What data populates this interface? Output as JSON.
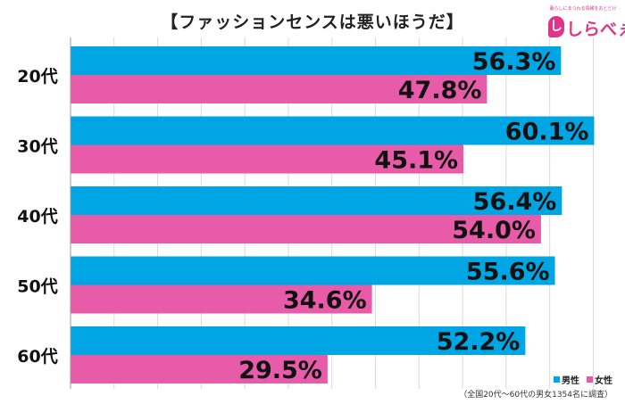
{
  "title": "【ファッションセンスは悪いほうだ】",
  "logo": {
    "tagline": "暮らしにまつわる情報をおとどけ",
    "mark": "し",
    "name": "しらべぇ"
  },
  "legend": [
    {
      "name": "男性",
      "color": "#00a6e4"
    },
    {
      "name": "女性",
      "color": "#e85ba8"
    }
  ],
  "note": "（全国20代～60代の男女1354名に調査）",
  "chart_data": {
    "type": "bar",
    "orientation": "horizontal",
    "title": "【ファッションセンスは悪いほうだ】",
    "categories": [
      "20代",
      "30代",
      "40代",
      "50代",
      "60代"
    ],
    "series": [
      {
        "name": "男性",
        "color": "#00a6e4",
        "values": [
          56.3,
          60.1,
          56.4,
          55.6,
          52.2
        ],
        "labels": [
          "56.3%",
          "60.1%",
          "56.4%",
          "55.6%",
          "52.2%"
        ]
      },
      {
        "name": "女性",
        "color": "#e85ba8",
        "values": [
          47.8,
          45.1,
          54.0,
          34.6,
          29.5
        ],
        "labels": [
          "47.8%",
          "45.1%",
          "54.0%",
          "34.6%",
          "29.5%"
        ]
      }
    ],
    "xlim": [
      0,
      62
    ],
    "grid": true,
    "legend_position": "bottom-right"
  }
}
